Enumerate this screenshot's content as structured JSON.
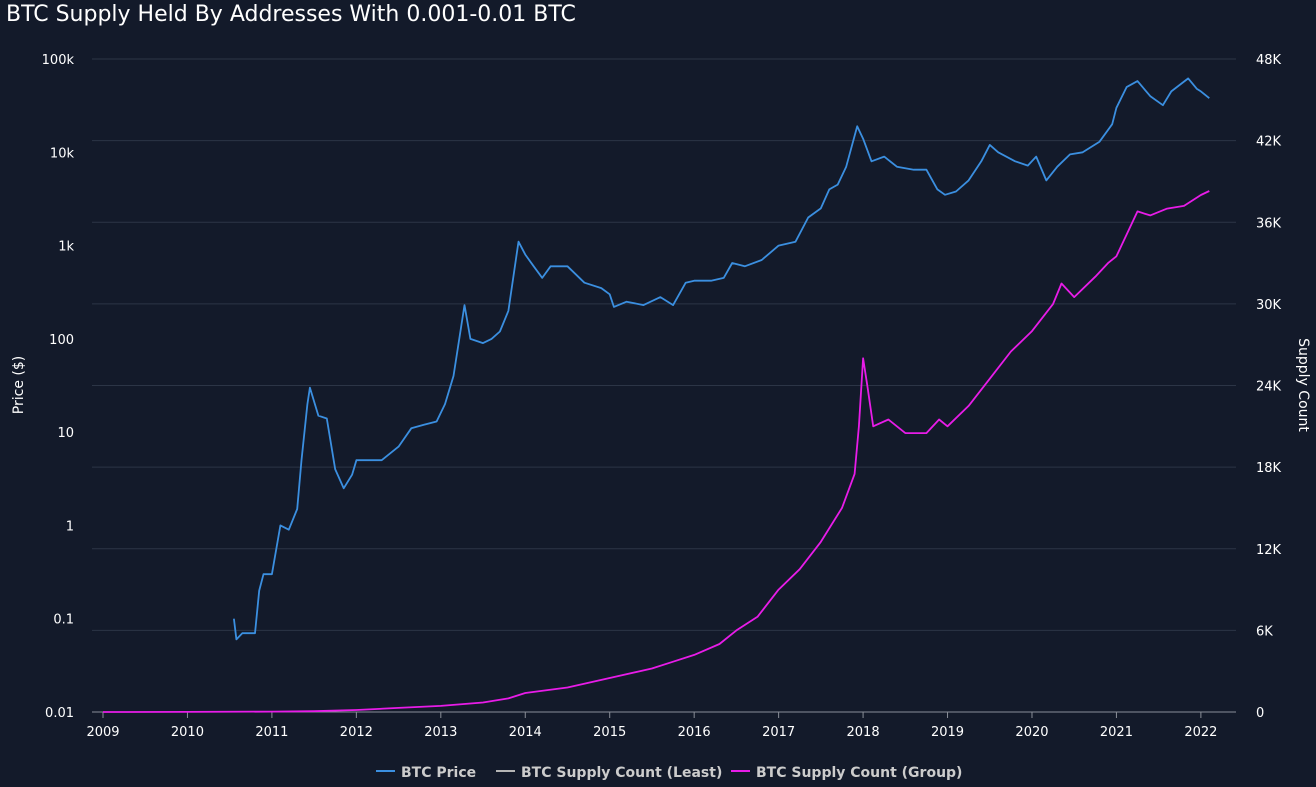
{
  "chart_data": {
    "type": "line",
    "title": "BTC Supply Held By Addresses With 0.001-0.01 BTC",
    "xlabel": "",
    "ylabel_left": "Price ($)",
    "ylabel_right": "Supply Count",
    "x_ticks": [
      "2009",
      "2010",
      "2011",
      "2012",
      "2013",
      "2014",
      "2015",
      "2016",
      "2017",
      "2018",
      "2019",
      "2020",
      "2021",
      "2022"
    ],
    "x_range": [
      2009.0,
      2022.25
    ],
    "y_left": {
      "scale": "log",
      "range": [
        0.01,
        100000
      ],
      "ticks": [
        0.01,
        0.1,
        1,
        10,
        100,
        1000,
        10000,
        100000
      ],
      "tick_labels": [
        "0.01",
        "0.1",
        "1",
        "10",
        "100",
        "1k",
        "10k",
        "100k"
      ]
    },
    "y_right": {
      "scale": "linear",
      "range": [
        0,
        48000
      ],
      "ticks": [
        0,
        6000,
        12000,
        18000,
        24000,
        30000,
        36000,
        42000,
        48000
      ],
      "tick_labels": [
        "0",
        "6K",
        "12K",
        "18K",
        "24K",
        "30K",
        "36K",
        "42K",
        "48K"
      ]
    },
    "legend_position": "bottom-center",
    "series": [
      {
        "name": "BTC Price",
        "axis": "left",
        "color": "#3b8fe0",
        "points": [
          [
            2010.55,
            0.1
          ],
          [
            2010.58,
            0.06
          ],
          [
            2010.65,
            0.07
          ],
          [
            2010.8,
            0.07
          ],
          [
            2010.85,
            0.2
          ],
          [
            2010.9,
            0.3
          ],
          [
            2011.0,
            0.3
          ],
          [
            2011.1,
            1.0
          ],
          [
            2011.2,
            0.9
          ],
          [
            2011.3,
            1.5
          ],
          [
            2011.35,
            5
          ],
          [
            2011.42,
            20
          ],
          [
            2011.45,
            30
          ],
          [
            2011.55,
            15
          ],
          [
            2011.65,
            14
          ],
          [
            2011.75,
            4
          ],
          [
            2011.85,
            2.5
          ],
          [
            2011.95,
            3.5
          ],
          [
            2012.0,
            5
          ],
          [
            2012.1,
            5
          ],
          [
            2012.3,
            5
          ],
          [
            2012.5,
            7
          ],
          [
            2012.65,
            11
          ],
          [
            2012.8,
            12
          ],
          [
            2012.95,
            13
          ],
          [
            2013.05,
            20
          ],
          [
            2013.15,
            40
          ],
          [
            2013.28,
            230
          ],
          [
            2013.35,
            100
          ],
          [
            2013.5,
            90
          ],
          [
            2013.6,
            100
          ],
          [
            2013.7,
            120
          ],
          [
            2013.8,
            200
          ],
          [
            2013.92,
            1100
          ],
          [
            2014.0,
            800
          ],
          [
            2014.1,
            600
          ],
          [
            2014.2,
            450
          ],
          [
            2014.3,
            600
          ],
          [
            2014.4,
            600
          ],
          [
            2014.5,
            600
          ],
          [
            2014.7,
            400
          ],
          [
            2014.9,
            350
          ],
          [
            2015.0,
            300
          ],
          [
            2015.05,
            220
          ],
          [
            2015.2,
            250
          ],
          [
            2015.4,
            230
          ],
          [
            2015.6,
            280
          ],
          [
            2015.75,
            230
          ],
          [
            2015.9,
            400
          ],
          [
            2016.0,
            420
          ],
          [
            2016.2,
            420
          ],
          [
            2016.35,
            450
          ],
          [
            2016.45,
            650
          ],
          [
            2016.6,
            600
          ],
          [
            2016.8,
            700
          ],
          [
            2017.0,
            1000
          ],
          [
            2017.2,
            1100
          ],
          [
            2017.35,
            2000
          ],
          [
            2017.5,
            2500
          ],
          [
            2017.6,
            4000
          ],
          [
            2017.7,
            4500
          ],
          [
            2017.8,
            7000
          ],
          [
            2017.93,
            19000
          ],
          [
            2018.0,
            14000
          ],
          [
            2018.1,
            8000
          ],
          [
            2018.25,
            9000
          ],
          [
            2018.4,
            7000
          ],
          [
            2018.6,
            6500
          ],
          [
            2018.75,
            6500
          ],
          [
            2018.88,
            4000
          ],
          [
            2018.97,
            3500
          ],
          [
            2019.1,
            3800
          ],
          [
            2019.25,
            5000
          ],
          [
            2019.4,
            8000
          ],
          [
            2019.5,
            12000
          ],
          [
            2019.6,
            10000
          ],
          [
            2019.8,
            8000
          ],
          [
            2019.95,
            7200
          ],
          [
            2020.05,
            9000
          ],
          [
            2020.17,
            5000
          ],
          [
            2020.3,
            7000
          ],
          [
            2020.45,
            9500
          ],
          [
            2020.6,
            10000
          ],
          [
            2020.8,
            13000
          ],
          [
            2020.95,
            20000
          ],
          [
            2021.0,
            30000
          ],
          [
            2021.12,
            50000
          ],
          [
            2021.25,
            58000
          ],
          [
            2021.4,
            40000
          ],
          [
            2021.55,
            32000
          ],
          [
            2021.65,
            45000
          ],
          [
            2021.85,
            62000
          ],
          [
            2021.95,
            48000
          ],
          [
            2022.0,
            45000
          ],
          [
            2022.1,
            38000
          ]
        ]
      },
      {
        "name": "BTC Supply Count (Least)",
        "axis": "right",
        "color": "#b5b5b5",
        "points": []
      },
      {
        "name": "BTC Supply Count (Group)",
        "axis": "right",
        "color": "#e81ce8",
        "points": [
          [
            2009.0,
            0
          ],
          [
            2010.0,
            10
          ],
          [
            2011.0,
            30
          ],
          [
            2011.5,
            60
          ],
          [
            2012.0,
            150
          ],
          [
            2012.5,
            300
          ],
          [
            2013.0,
            450
          ],
          [
            2013.5,
            700
          ],
          [
            2013.8,
            1000
          ],
          [
            2014.0,
            1400
          ],
          [
            2014.5,
            1800
          ],
          [
            2015.0,
            2500
          ],
          [
            2015.5,
            3200
          ],
          [
            2015.75,
            3700
          ],
          [
            2016.0,
            4200
          ],
          [
            2016.3,
            5000
          ],
          [
            2016.5,
            6000
          ],
          [
            2016.75,
            7000
          ],
          [
            2017.0,
            9000
          ],
          [
            2017.25,
            10500
          ],
          [
            2017.5,
            12500
          ],
          [
            2017.75,
            15000
          ],
          [
            2017.9,
            17500
          ],
          [
            2017.95,
            21000
          ],
          [
            2018.0,
            26000
          ],
          [
            2018.05,
            24000
          ],
          [
            2018.12,
            21000
          ],
          [
            2018.3,
            21500
          ],
          [
            2018.5,
            20500
          ],
          [
            2018.75,
            20500
          ],
          [
            2018.9,
            21500
          ],
          [
            2019.0,
            21000
          ],
          [
            2019.25,
            22500
          ],
          [
            2019.5,
            24500
          ],
          [
            2019.75,
            26500
          ],
          [
            2020.0,
            28000
          ],
          [
            2020.25,
            30000
          ],
          [
            2020.35,
            31500
          ],
          [
            2020.5,
            30500
          ],
          [
            2020.75,
            32000
          ],
          [
            2020.9,
            33000
          ],
          [
            2021.0,
            33500
          ],
          [
            2021.25,
            36800
          ],
          [
            2021.4,
            36500
          ],
          [
            2021.6,
            37000
          ],
          [
            2021.8,
            37200
          ],
          [
            2022.0,
            38000
          ],
          [
            2022.1,
            38300
          ]
        ]
      }
    ]
  }
}
